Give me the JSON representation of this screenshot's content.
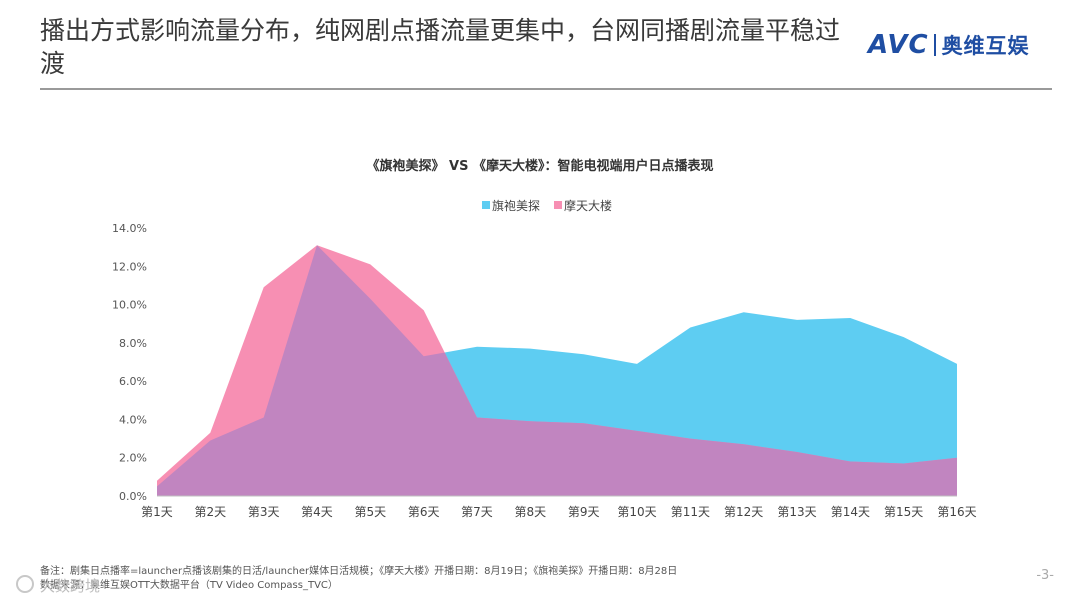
{
  "header": {
    "title": "播出方式影响流量分布，纯网剧点播流量更集中，台网同播剧流量平稳过渡",
    "logo_mark": "AVC",
    "logo_text": "奥维互娱"
  },
  "footer": {
    "note_line1": "备注：剧集日点播率=launcher点播该剧集的日活/launcher媒体日活规模；《摩天大楼》开播日期：8月19日；《旗袍美探》开播日期：8月28日",
    "note_line2": "数据来源：奥维互娱OTT大数据平台（TV Video Compass_TVC）",
    "page_number": "-3-",
    "watermark_source": "大数跨境"
  },
  "chart_data": {
    "type": "area",
    "title": "《旗袍美探》 VS 《摩天大楼》：智能电视端用户日点播表现",
    "xlabel": "",
    "ylabel": "",
    "categories": [
      "第1天",
      "第2天",
      "第3天",
      "第4天",
      "第5天",
      "第6天",
      "第7天",
      "第8天",
      "第9天",
      "第10天",
      "第11天",
      "第12天",
      "第13天",
      "第14天",
      "第15天",
      "第16天"
    ],
    "ylim": [
      0,
      14
    ],
    "yticks": [
      "0.0%",
      "2.0%",
      "4.0%",
      "6.0%",
      "8.0%",
      "10.0%",
      "12.0%",
      "14.0%"
    ],
    "y_unit": "%",
    "legend_position": "top-center",
    "grid": false,
    "series": [
      {
        "name": "旗袍美探",
        "color": "#5ecdf2",
        "values": [
          0.5,
          2.9,
          4.1,
          13.1,
          10.3,
          7.3,
          7.8,
          7.7,
          7.4,
          6.9,
          8.8,
          9.6,
          9.2,
          9.3,
          8.3,
          6.9
        ]
      },
      {
        "name": "摩天大楼",
        "color": "#f78fb3",
        "values": [
          0.8,
          3.3,
          10.9,
          13.1,
          12.1,
          9.7,
          4.1,
          3.9,
          3.8,
          3.4,
          3.0,
          2.7,
          2.3,
          1.8,
          1.7,
          2.0
        ]
      }
    ],
    "overlap_color": "#c185c0"
  }
}
